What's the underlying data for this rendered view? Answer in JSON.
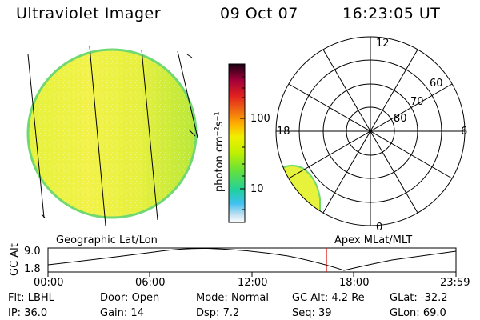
{
  "header": {
    "instrument": "Ultraviolet Imager",
    "date": "09 Oct 07",
    "time": "16:23:05 UT"
  },
  "colorbar": {
    "unit_label": "photon cm⁻²s⁻¹",
    "tick_labels": [
      "100",
      "10"
    ],
    "tick_values": [
      100,
      10
    ],
    "scale": "log",
    "colors": [
      "#1a0010",
      "#a0003a",
      "#e02020",
      "#f07010",
      "#ffb000",
      "#f0f000",
      "#c0f000",
      "#60e040",
      "#20d0a0",
      "#40c0f0",
      "#c0e0f0",
      "#ffffff"
    ]
  },
  "polar_plot": {
    "clock_labels": [
      "12",
      "18",
      "6",
      "0"
    ],
    "lat_labels": [
      "60",
      "70",
      "80"
    ]
  },
  "timeline": {
    "left_title": "Geographic Lat/Lon",
    "right_title": "Apex MLat/MLT",
    "y_axis_label": "GC Alt",
    "y_ticks": [
      "9.0",
      "1.8"
    ],
    "x_ticks": [
      "00:00",
      "06:00",
      "12:00",
      "18:00",
      "23:59"
    ],
    "current_time_marker": "16:23",
    "marker_color": "#e00000"
  },
  "status": {
    "row1": [
      {
        "label": "Flt:",
        "value": "LBHL"
      },
      {
        "label": "Door:",
        "value": "Open"
      },
      {
        "label": "Mode:",
        "value": "Normal"
      },
      {
        "label": "GC Alt:",
        "value": "4.2 Re"
      },
      {
        "label": "GLat:",
        "value": "-32.2"
      }
    ],
    "row2": [
      {
        "label": "IP:",
        "value": "36.0"
      },
      {
        "label": "Gain:",
        "value": "14"
      },
      {
        "label": "Dsp:",
        "value": "7.2"
      },
      {
        "label": "Seq:",
        "value": "39"
      },
      {
        "label": "GLon:",
        "value": "69.0"
      }
    ]
  }
}
